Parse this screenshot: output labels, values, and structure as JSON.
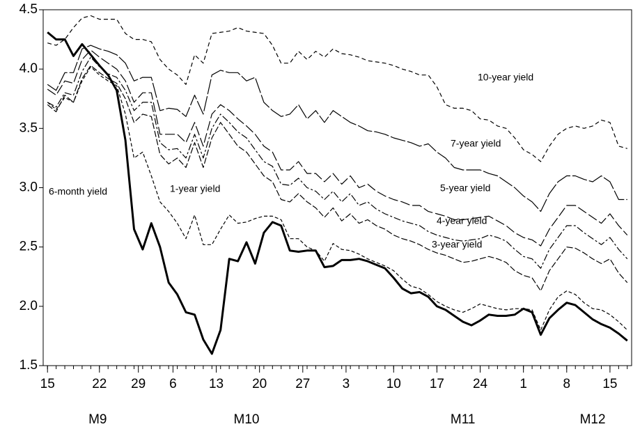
{
  "chart_data": {
    "type": "line",
    "x": [
      0,
      1,
      2,
      3,
      4,
      5,
      6,
      7,
      8,
      9,
      10,
      11,
      12,
      13,
      14,
      15,
      16,
      17,
      18,
      19,
      20,
      21,
      22,
      23,
      24,
      25,
      26,
      27,
      28,
      29,
      30,
      31,
      32,
      33,
      34,
      35,
      36,
      37,
      38,
      39,
      40,
      41,
      42,
      43,
      44,
      45,
      46,
      47,
      48,
      49,
      50,
      51,
      52,
      53,
      54,
      55,
      56,
      57,
      58,
      59,
      60,
      61,
      62,
      63,
      64,
      65,
      66,
      67
    ],
    "xlim": [
      -0.5,
      67.5
    ],
    "xticks": [
      {
        "value": 0,
        "label": "15"
      },
      {
        "value": 6,
        "label": "22"
      },
      {
        "value": 10.5,
        "label": "29"
      },
      {
        "value": 14.5,
        "label": "6"
      },
      {
        "value": 19.5,
        "label": "13"
      },
      {
        "value": 24.5,
        "label": "20"
      },
      {
        "value": 29.5,
        "label": "27"
      },
      {
        "value": 34.5,
        "label": "3"
      },
      {
        "value": 40,
        "label": "10"
      },
      {
        "value": 45,
        "label": "17"
      },
      {
        "value": 50,
        "label": "24"
      },
      {
        "value": 55,
        "label": "1"
      },
      {
        "value": 60,
        "label": "8"
      },
      {
        "value": 65,
        "label": "15"
      }
    ],
    "xgroup_labels": [
      {
        "value": 5.8,
        "label": "M9"
      },
      {
        "value": 23,
        "label": "M10"
      },
      {
        "value": 48,
        "label": "M11"
      },
      {
        "value": 63,
        "label": "M12"
      }
    ],
    "ylim": [
      1.5,
      4.5
    ],
    "yticks": [
      {
        "value": 1.5,
        "label": "1.5"
      },
      {
        "value": 2,
        "label": "2.0"
      },
      {
        "value": 2.5,
        "label": "2.5"
      },
      {
        "value": 3,
        "label": "3.0"
      },
      {
        "value": 3.5,
        "label": "3.5"
      },
      {
        "value": 4,
        "label": "4.0"
      },
      {
        "value": 4.5,
        "label": "4.5"
      }
    ],
    "series": [
      {
        "name": "6-month yield",
        "color": "#000000",
        "dash": "none",
        "width": 3,
        "values": [
          4.31,
          4.25,
          4.25,
          4.11,
          4.21,
          4.12,
          4.03,
          3.95,
          3.82,
          3.4,
          2.65,
          2.48,
          2.7,
          2.5,
          2.2,
          2.1,
          1.95,
          1.93,
          1.72,
          1.6,
          1.8,
          2.4,
          2.38,
          2.54,
          2.36,
          2.62,
          2.71,
          2.68,
          2.47,
          2.46,
          2.47,
          2.47,
          2.33,
          2.34,
          2.39,
          2.39,
          2.4,
          2.38,
          2.35,
          2.32,
          2.24,
          2.15,
          2.11,
          2.12,
          2.08,
          2.0,
          1.97,
          1.92,
          1.87,
          1.84,
          1.88,
          1.93,
          1.92,
          1.92,
          1.93,
          1.98,
          1.95,
          1.76,
          1.9,
          1.97,
          2.03,
          2.01,
          1.95,
          1.89,
          1.85,
          1.82,
          1.77,
          1.71
        ]
      },
      {
        "name": "1-year yield",
        "color": "#000000",
        "dash": "5,3",
        "width": 1.2,
        "values": [
          3.72,
          3.66,
          3.76,
          3.72,
          3.9,
          4.02,
          3.95,
          3.9,
          3.86,
          3.62,
          3.25,
          3.3,
          3.1,
          2.88,
          2.8,
          2.7,
          2.57,
          2.77,
          2.52,
          2.52,
          2.65,
          2.77,
          2.7,
          2.71,
          2.74,
          2.76,
          2.76,
          2.73,
          2.57,
          2.57,
          2.5,
          2.47,
          2.38,
          2.53,
          2.48,
          2.47,
          2.44,
          2.4,
          2.37,
          2.34,
          2.3,
          2.23,
          2.17,
          2.15,
          2.1,
          2.04,
          2.0,
          1.97,
          1.95,
          1.98,
          2.02,
          2.0,
          1.98,
          1.97,
          1.98,
          1.98,
          1.97,
          1.8,
          1.97,
          2.08,
          2.13,
          2.1,
          2.03,
          1.98,
          1.97,
          1.93,
          1.87,
          1.8
        ]
      },
      {
        "name": "3-year yield",
        "color": "#000000",
        "dash": "9,3",
        "width": 1.2,
        "values": [
          3.7,
          3.64,
          3.78,
          3.72,
          3.92,
          4.03,
          3.97,
          3.92,
          3.88,
          3.75,
          3.55,
          3.62,
          3.6,
          3.28,
          3.2,
          3.25,
          3.17,
          3.38,
          3.17,
          3.42,
          3.55,
          3.45,
          3.35,
          3.3,
          3.2,
          3.1,
          3.05,
          2.9,
          2.88,
          2.95,
          2.88,
          2.83,
          2.75,
          2.83,
          2.72,
          2.78,
          2.7,
          2.73,
          2.68,
          2.65,
          2.6,
          2.57,
          2.55,
          2.52,
          2.48,
          2.45,
          2.43,
          2.4,
          2.37,
          2.38,
          2.4,
          2.42,
          2.4,
          2.37,
          2.3,
          2.26,
          2.24,
          2.13,
          2.3,
          2.4,
          2.5,
          2.49,
          2.45,
          2.4,
          2.36,
          2.4,
          2.28,
          2.2
        ]
      },
      {
        "name": "4-year yield",
        "color": "#000000",
        "dash": "10,3,3,3",
        "width": 1.2,
        "values": [
          3.72,
          3.68,
          3.8,
          3.78,
          3.98,
          4.1,
          4.02,
          3.96,
          3.93,
          3.82,
          3.65,
          3.72,
          3.72,
          3.38,
          3.32,
          3.33,
          3.25,
          3.45,
          3.25,
          3.5,
          3.62,
          3.55,
          3.47,
          3.42,
          3.32,
          3.22,
          3.18,
          3.03,
          3.02,
          3.08,
          3.0,
          2.97,
          2.9,
          2.97,
          2.88,
          2.95,
          2.85,
          2.88,
          2.82,
          2.78,
          2.75,
          2.72,
          2.7,
          2.68,
          2.63,
          2.6,
          2.58,
          2.56,
          2.55,
          2.56,
          2.57,
          2.6,
          2.58,
          2.55,
          2.48,
          2.42,
          2.4,
          2.32,
          2.48,
          2.58,
          2.68,
          2.68,
          2.62,
          2.57,
          2.52,
          2.58,
          2.48,
          2.4
        ]
      },
      {
        "name": "5-year yield",
        "color": "#000000",
        "dash": "14,4",
        "width": 1.2,
        "values": [
          3.83,
          3.78,
          3.9,
          3.88,
          4.08,
          4.16,
          4.1,
          4.05,
          4.0,
          3.9,
          3.72,
          3.8,
          3.8,
          3.45,
          3.45,
          3.45,
          3.38,
          3.55,
          3.35,
          3.62,
          3.7,
          3.65,
          3.58,
          3.52,
          3.45,
          3.35,
          3.3,
          3.15,
          3.15,
          3.22,
          3.12,
          3.12,
          3.05,
          3.12,
          3.03,
          3.1,
          3.0,
          3.03,
          2.97,
          2.93,
          2.9,
          2.88,
          2.85,
          2.85,
          2.8,
          2.78,
          2.76,
          2.73,
          2.73,
          2.74,
          2.75,
          2.76,
          2.72,
          2.68,
          2.62,
          2.58,
          2.56,
          2.51,
          2.65,
          2.75,
          2.85,
          2.85,
          2.8,
          2.75,
          2.7,
          2.78,
          2.68,
          2.6
        ]
      },
      {
        "name": "7-year yield",
        "color": "#000000",
        "dash": "22,3",
        "width": 1.2,
        "values": [
          3.87,
          3.82,
          3.97,
          3.97,
          4.17,
          4.2,
          4.17,
          4.15,
          4.12,
          4.05,
          3.9,
          3.93,
          3.93,
          3.65,
          3.67,
          3.66,
          3.6,
          3.78,
          3.62,
          3.95,
          3.99,
          3.97,
          3.97,
          3.9,
          3.93,
          3.72,
          3.65,
          3.6,
          3.62,
          3.7,
          3.58,
          3.65,
          3.55,
          3.65,
          3.6,
          3.55,
          3.52,
          3.48,
          3.47,
          3.45,
          3.42,
          3.4,
          3.38,
          3.35,
          3.37,
          3.3,
          3.25,
          3.17,
          3.15,
          3.15,
          3.15,
          3.12,
          3.1,
          3.05,
          3.0,
          2.93,
          2.88,
          2.8,
          2.95,
          3.05,
          3.1,
          3.1,
          3.07,
          3.05,
          3.1,
          3.05,
          2.9,
          2.9
        ]
      },
      {
        "name": "10-year yield",
        "color": "#000000",
        "dash": "6,4",
        "width": 1.2,
        "values": [
          4.22,
          4.2,
          4.25,
          4.35,
          4.43,
          4.45,
          4.42,
          4.42,
          4.42,
          4.3,
          4.25,
          4.25,
          4.23,
          4.08,
          4.0,
          3.95,
          3.87,
          4.12,
          4.05,
          4.3,
          4.31,
          4.32,
          4.35,
          4.32,
          4.31,
          4.3,
          4.2,
          4.05,
          4.05,
          4.15,
          4.08,
          4.15,
          4.1,
          4.17,
          4.13,
          4.12,
          4.1,
          4.07,
          4.06,
          4.05,
          4.03,
          4.0,
          3.98,
          3.95,
          3.95,
          3.85,
          3.7,
          3.67,
          3.67,
          3.65,
          3.58,
          3.57,
          3.52,
          3.5,
          3.42,
          3.32,
          3.28,
          3.22,
          3.35,
          3.45,
          3.5,
          3.52,
          3.5,
          3.52,
          3.57,
          3.55,
          3.35,
          3.33
        ]
      }
    ]
  }
}
